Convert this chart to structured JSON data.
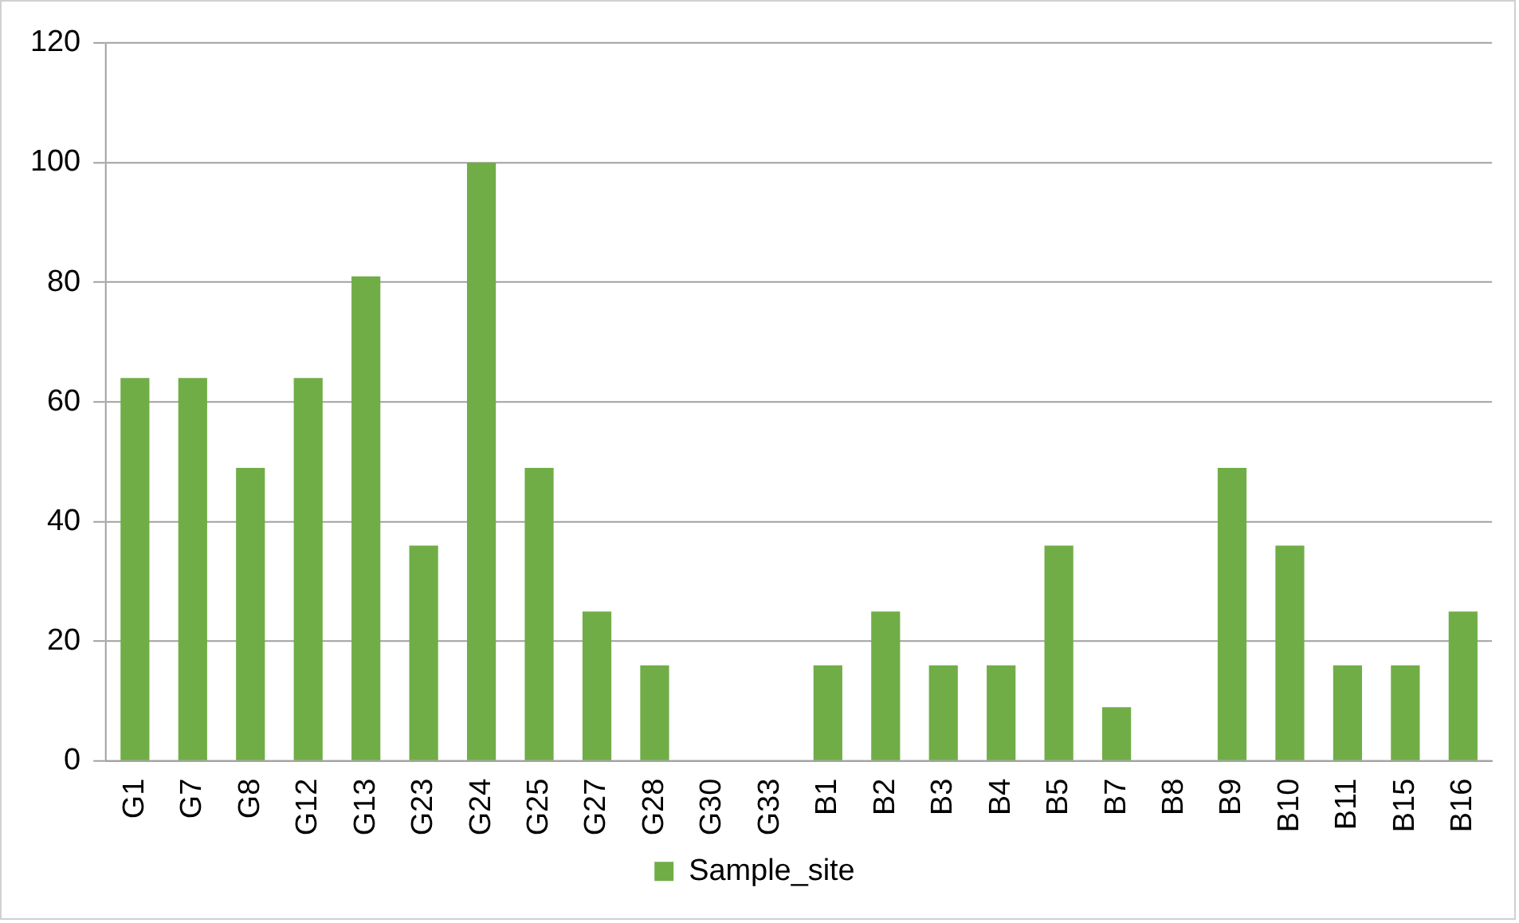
{
  "chart_data": {
    "type": "bar",
    "categories": [
      "G1",
      "G7",
      "G8",
      "G12",
      "G13",
      "G23",
      "G24",
      "G25",
      "G27",
      "G28",
      "G30",
      "G33",
      "B1",
      "B2",
      "B3",
      "B4",
      "B5",
      "B7",
      "B8",
      "B9",
      "B10",
      "B11",
      "B15",
      "B16"
    ],
    "series": [
      {
        "name": "Sample_site",
        "color": "#70ad47",
        "values": [
          64,
          64,
          49,
          64,
          81,
          36,
          100,
          49,
          25,
          16,
          0,
          0,
          16,
          25,
          16,
          16,
          36,
          9,
          0,
          49,
          36,
          16,
          16,
          25
        ]
      }
    ],
    "ylim": [
      0,
      120
    ],
    "yticks": [
      0,
      20,
      40,
      60,
      80,
      100,
      120
    ],
    "grid": "y",
    "legend": "bottom"
  }
}
